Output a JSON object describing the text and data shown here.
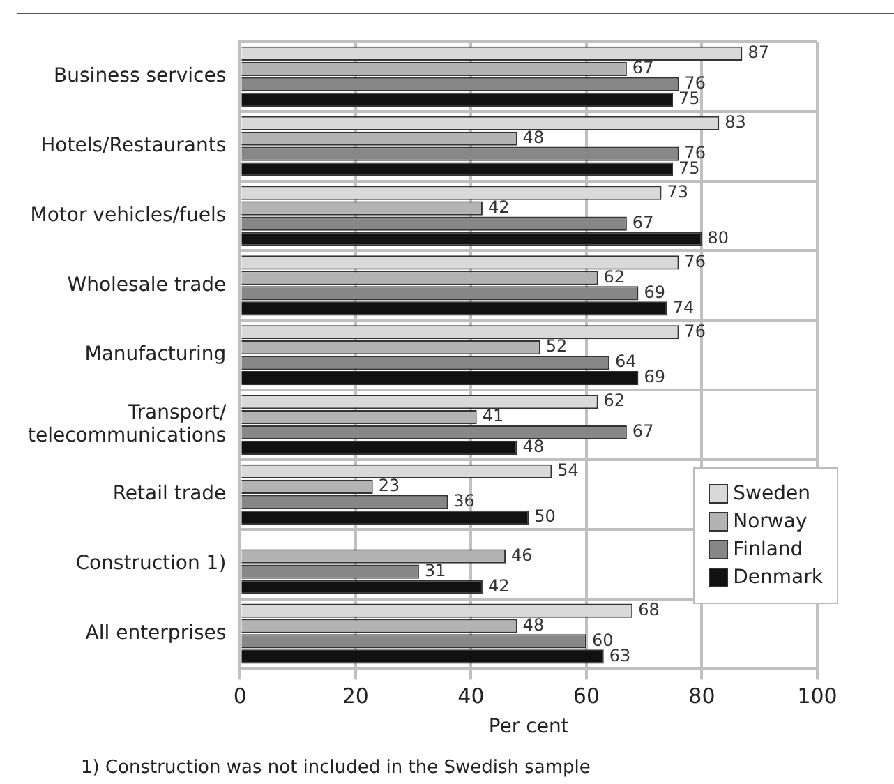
{
  "chart_data": {
    "type": "bar",
    "orientation": "horizontal",
    "xlabel": "Per cent",
    "categories": [
      "Business services",
      "Hotels/Restaurants",
      "Motor vehicles/fuels",
      "Wholesale trade",
      "Manufacturing",
      "Transport/ telecommunications",
      "Retail trade",
      "Construction 1)",
      "All enterprises"
    ],
    "series": [
      {
        "name": "Sweden",
        "color": "#d9d9d9",
        "values": [
          87,
          83,
          73,
          76,
          76,
          62,
          54,
          null,
          68
        ]
      },
      {
        "name": "Norway",
        "color": "#b3b3b3",
        "values": [
          67,
          48,
          42,
          62,
          52,
          41,
          23,
          46,
          48
        ]
      },
      {
        "name": "Finland",
        "color": "#878787",
        "values": [
          76,
          76,
          67,
          69,
          64,
          67,
          36,
          31,
          60
        ]
      },
      {
        "name": "Denmark",
        "color": "#111111",
        "values": [
          75,
          75,
          80,
          74,
          69,
          48,
          50,
          42,
          63
        ]
      }
    ],
    "xlim": [
      0,
      100
    ],
    "xticks": [
      0,
      20,
      40,
      60,
      80,
      100
    ],
    "grid": true,
    "legend": "right",
    "data_labels": true,
    "annotations": [
      "1) Construction was not included in the Swedish sample"
    ]
  }
}
